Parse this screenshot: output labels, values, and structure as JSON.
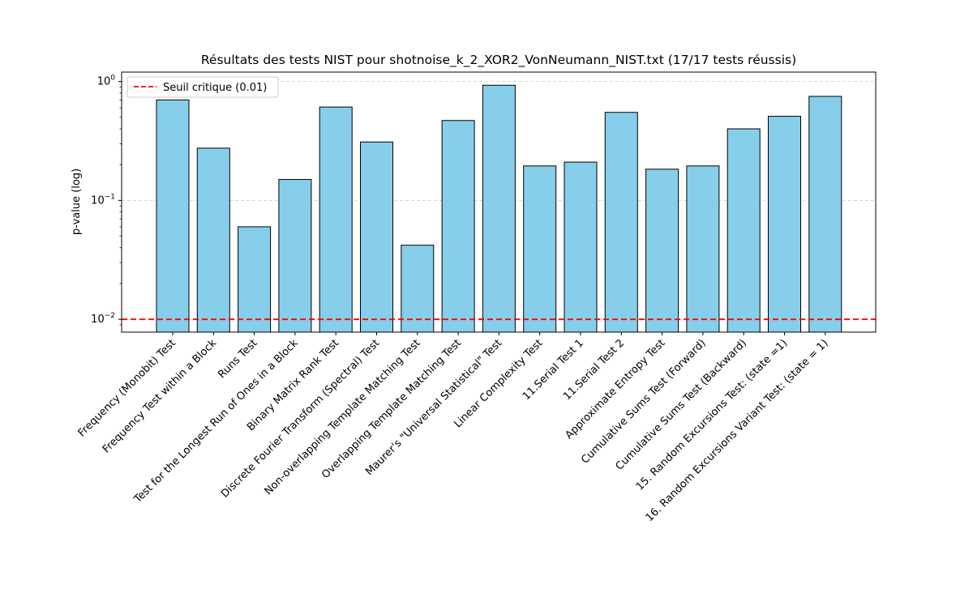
{
  "chart_data": {
    "type": "bar",
    "title": "Résultats des tests NIST pour shotnoise_k_2_XOR2_VonNeumann_NIST.txt (17/17 tests réussis)",
    "xlabel": "",
    "ylabel": "p-value (log)",
    "yscale": "log",
    "ylim": [
      0.0078,
      1.2
    ],
    "yticks": [
      0.01,
      0.1,
      1
    ],
    "ytick_labels": [
      {
        "base": "10",
        "exp": "−2"
      },
      {
        "base": "10",
        "exp": "−1"
      },
      {
        "base": "10",
        "exp": "0"
      }
    ],
    "grid": "y-dashed",
    "bar_color": "#87ceeb",
    "bar_edge_color": "#000000",
    "categories": [
      "Frequency (Monobit) Test",
      "Frequency Test within a Block",
      "Runs Test",
      "Test for the Longest Run of Ones in a Block",
      "Binary Matrix Rank Test",
      "Discrete Fourier Transform (Spectral) Test",
      "Non-overlapping Template Matching Test",
      "Overlapping Template Matching Test",
      "Maurer's \"Universal Statistical\" Test",
      "Linear Complexity Test",
      "11.Serial Test 1",
      "11.Serial Test 2",
      "Approximate Entropy Test",
      "Cumulative Sums Test (Forward)",
      "Cumulative Sums Test (Backward)",
      "15. Random Excursions Test: (state =1)",
      "16. Random Excursions Variant Test: (state = 1)"
    ],
    "values": [
      0.7,
      0.275,
      0.06,
      0.15,
      0.61,
      0.31,
      0.042,
      0.47,
      0.93,
      0.195,
      0.21,
      0.55,
      0.183,
      0.195,
      0.4,
      0.51,
      0.75
    ],
    "threshold": {
      "value": 0.01,
      "label": "Seuil critique (0.01)",
      "color": "#ff0000"
    },
    "legend": {
      "position": "top-left"
    }
  }
}
